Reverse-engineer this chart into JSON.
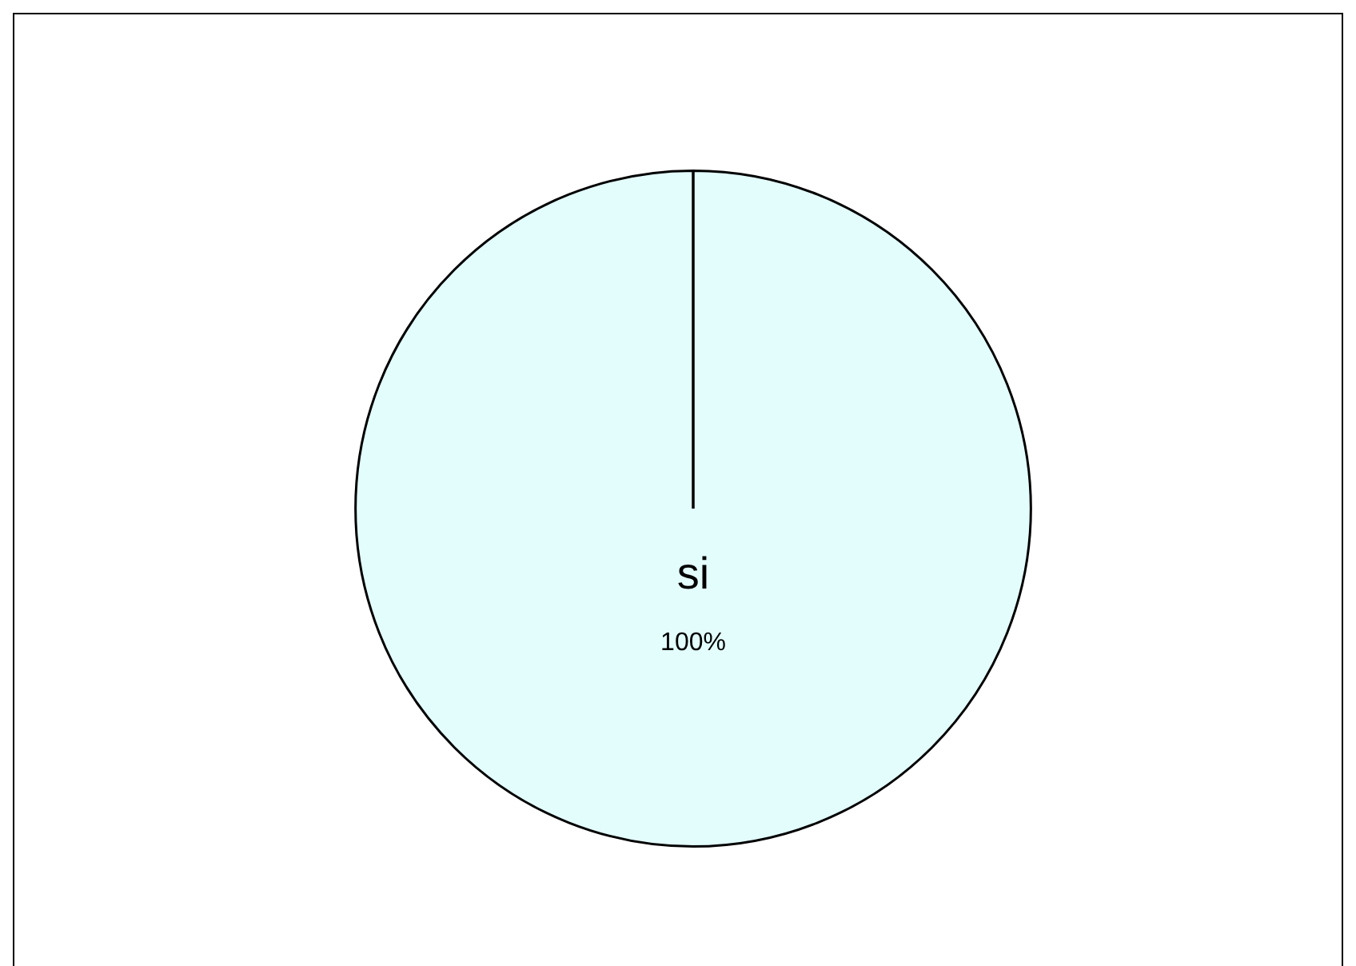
{
  "chart_data": {
    "type": "pie",
    "categories": [
      "si"
    ],
    "values": [
      100
    ],
    "value_labels": [
      "100%"
    ],
    "data_labels": true,
    "needle": "si",
    "colors": [
      "#e3fdfd"
    ],
    "legend": false
  }
}
